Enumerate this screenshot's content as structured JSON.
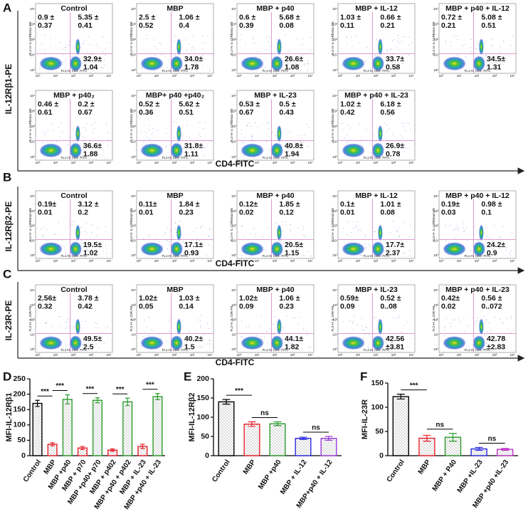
{
  "flow_panels": [
    {
      "label": "A",
      "y_label": "IL-12Rβ1-PE",
      "x_label": "CD4-FITC",
      "plot_x_axis": "FL1-H: CD4- FITC",
      "plot_y_axis": "FL2-H: IL-12Rbeta1-PE",
      "plot_ticks": [
        "10⁰",
        "10¹",
        "10²",
        "10³",
        "10⁴"
      ],
      "plots": [
        {
          "title": "Control",
          "ul": [
            "0.9 ±",
            "0.37"
          ],
          "ur": [
            "5.35 ±",
            "0.41"
          ],
          "lr": [
            "32.9±",
            "1.04"
          ]
        },
        {
          "title": "MBP",
          "ul": [
            "2.5 ±",
            "0.52"
          ],
          "ur": [
            "1.06 ±",
            "0.4"
          ],
          "lr": [
            "34.0±",
            "1.78"
          ]
        },
        {
          "title": "MBP + p40",
          "ul": [
            "0.6 ±",
            "0.39"
          ],
          "ur": [
            "5.68 ±",
            "0.08"
          ],
          "lr": [
            "26.6±",
            "1.08"
          ]
        },
        {
          "title": "MBP + IL-12",
          "ul": [
            "1.03 ±",
            "0.11"
          ],
          "ur": [
            "0.66 ±",
            "0.21"
          ],
          "lr": [
            "33.7±",
            "0.58"
          ]
        },
        {
          "title": "MBP + p40 + IL-12",
          "ul": [
            "0.72 ±",
            "0.21"
          ],
          "ur": [
            "5.08 ±",
            "0.51"
          ],
          "lr": [
            "34.5±",
            "1.31"
          ]
        },
        {
          "title": "MBP + p40₂",
          "ul": [
            "0.46 ±",
            "0.61"
          ],
          "ur": [
            "0.2 ±",
            "0.67"
          ],
          "lr": [
            "36.6±",
            "1.88"
          ]
        },
        {
          "title": "MBP+ p40 +p40₂",
          "ul": [
            "0.52 ±",
            "0.36"
          ],
          "ur": [
            "5.62 ±",
            "0.51"
          ],
          "lr": [
            "31.8±",
            "1.11"
          ]
        },
        {
          "title": "MBP + IL-23",
          "ul": [
            "0.53 ±",
            "0.67"
          ],
          "ur": [
            "0.5 ±",
            "0.43"
          ],
          "lr": [
            "40.8±",
            "1.94"
          ]
        },
        {
          "title": "MBP + p40 + IL-23",
          "ul": [
            "1.02 ±",
            "0.42"
          ],
          "ur": [
            "6.18 ±",
            "0.56"
          ],
          "lr": [
            "26.9±",
            "0.78"
          ]
        }
      ]
    },
    {
      "label": "B",
      "y_label": "IL-12Rβ2-PE",
      "x_label": "CD4-FITC",
      "plot_x_axis": "FL1-H: CD4- FITC",
      "plot_y_axis": "FL2-H: IL-12Rbeta2-PE",
      "plot_ticks": [
        "10⁰",
        "10¹",
        "10²",
        "10³",
        "10⁴"
      ],
      "plots": [
        {
          "title": "Control",
          "ul": [
            "0.19±",
            "0.01"
          ],
          "ur": [
            "3.12 ±",
            "0.2"
          ],
          "lr": [
            "19.5±",
            "1.02"
          ]
        },
        {
          "title": "MBP",
          "ul": [
            "0.11±",
            "0.01"
          ],
          "ur": [
            "1.84 ±",
            "0.23"
          ],
          "lr": [
            "17.1±",
            "0.93"
          ]
        },
        {
          "title": "MBP + p40",
          "ul": [
            "0.12±",
            "0.02"
          ],
          "ur": [
            "1.85 ±",
            "0.12"
          ],
          "lr": [
            "20.5±",
            "1.15"
          ]
        },
        {
          "title": "MBP + IL-12",
          "ul": [
            "0.1±",
            "0.01"
          ],
          "ur": [
            "1.01 ±",
            "0.08"
          ],
          "lr": [
            "17.7±",
            "2.37"
          ]
        },
        {
          "title": "MBP + p40 + IL-12",
          "ul": [
            "0.19±",
            "0.03"
          ],
          "ur": [
            "0.98 ±",
            "0.1"
          ],
          "lr": [
            "24.2±",
            "0.9"
          ]
        }
      ]
    },
    {
      "label": "C",
      "y_label": "IL-23R-PE",
      "x_label": "CD4-FITC",
      "plot_x_axis": "FL1-H: CD4- FITC",
      "plot_y_axis": "FL2-H: IL-23R-PE",
      "plot_ticks": [
        "10⁰",
        "10¹",
        "10²",
        "10³",
        "10⁴"
      ],
      "plots": [
        {
          "title": "Control",
          "ul": [
            "2.56±",
            "0.32"
          ],
          "ur": [
            "3.78 ±",
            "0.42"
          ],
          "lr": [
            "49.5±",
            "2.5"
          ]
        },
        {
          "title": "MBP",
          "ul": [
            "1.02±",
            "0.05"
          ],
          "ur": [
            "1.03 ±",
            "0.14"
          ],
          "lr": [
            "40.2±",
            "1.5"
          ]
        },
        {
          "title": "MBP + p40",
          "ul": [
            "1.02±",
            "0.09"
          ],
          "ur": [
            "1.06 ±",
            "0.23"
          ],
          "lr": [
            "44.1±",
            "1.82"
          ]
        },
        {
          "title": "MBP + IL-23",
          "ul": [
            "0.59±",
            "0.09"
          ],
          "ur": [
            "0.52 ±",
            "0..08"
          ],
          "lr": [
            "42.56",
            "±3.81"
          ]
        },
        {
          "title": "MBP + p40 + IL-23",
          "ul": [
            "0.42±",
            "0.02"
          ],
          "ur": [
            "0.56 ±",
            "0..072"
          ],
          "lr": [
            "42.78",
            "±2.83"
          ]
        }
      ]
    }
  ],
  "chart_data": [
    {
      "type": "bar",
      "label": "D",
      "y_label": "MFI-IL-12Rβ1",
      "categories": [
        "Control",
        "MBP",
        "MBP +p40",
        "MBP + p70",
        "MBP +p40+ p70",
        "MBP + p402",
        "MBP +p40 + p402",
        "MBP + IL-23",
        "MBP +p40 + IL-23"
      ],
      "values": [
        170,
        37,
        183,
        25,
        180,
        18,
        175,
        30,
        192
      ],
      "errors": [
        10,
        5,
        15,
        5,
        8,
        4,
        12,
        7,
        10
      ],
      "colors": [
        "#000000",
        "#e8202a",
        "#2a9a2a",
        "#e8202a",
        "#2a9a2a",
        "#e8202a",
        "#2a9a2a",
        "#e8202a",
        "#2a9a2a"
      ],
      "ylim": [
        0,
        250
      ],
      "yticks": [
        0,
        50,
        100,
        150,
        200,
        250
      ],
      "annotations": [
        {
          "text": "***",
          "between": [
            0,
            1
          ]
        },
        {
          "text": "***",
          "between": [
            1,
            2
          ]
        },
        {
          "text": "***",
          "between": [
            3,
            4
          ]
        },
        {
          "text": "***",
          "between": [
            5,
            6
          ]
        },
        {
          "text": "***",
          "between": [
            7,
            8
          ]
        }
      ]
    },
    {
      "type": "bar",
      "label": "E",
      "y_label": "MFI-IL-12Rβ2",
      "categories": [
        "Control",
        "MBP",
        "MBP +p40",
        "MBP + IL-12",
        "MBP+p40 + IL-12"
      ],
      "values": [
        140,
        82,
        83,
        45,
        45
      ],
      "errors": [
        6,
        6,
        5,
        3,
        5
      ],
      "colors": [
        "#000000",
        "#e8202a",
        "#2a9a2a",
        "#2a2ae0",
        "#9a3ad8"
      ],
      "ylim": [
        0,
        200
      ],
      "yticks": [
        0,
        50,
        100,
        150,
        200
      ],
      "annotations": [
        {
          "text": "***",
          "between": [
            0,
            1
          ]
        },
        {
          "text": "ns",
          "between": [
            1,
            2
          ]
        },
        {
          "text": "ns",
          "between": [
            3,
            4
          ]
        }
      ]
    },
    {
      "type": "bar",
      "label": "F",
      "y_label": "MFI-IL-23R",
      "categories": [
        "Control",
        "MBP",
        "MBP + P40",
        "MBP +IL-23",
        "MBP +p40 +IL-23"
      ],
      "values": [
        122,
        36,
        38,
        14,
        13
      ],
      "errors": [
        5,
        6,
        8,
        3,
        2
      ],
      "colors": [
        "#000000",
        "#e8202a",
        "#2a9a2a",
        "#2a2ae0",
        "#c030c8"
      ],
      "ylim": [
        0,
        150
      ],
      "yticks": [
        0,
        50,
        100,
        150
      ],
      "annotations": [
        {
          "text": "***",
          "between": [
            0,
            1
          ]
        },
        {
          "text": "ns",
          "between": [
            1,
            2
          ]
        },
        {
          "text": "ns",
          "between": [
            3,
            4
          ]
        }
      ]
    }
  ]
}
